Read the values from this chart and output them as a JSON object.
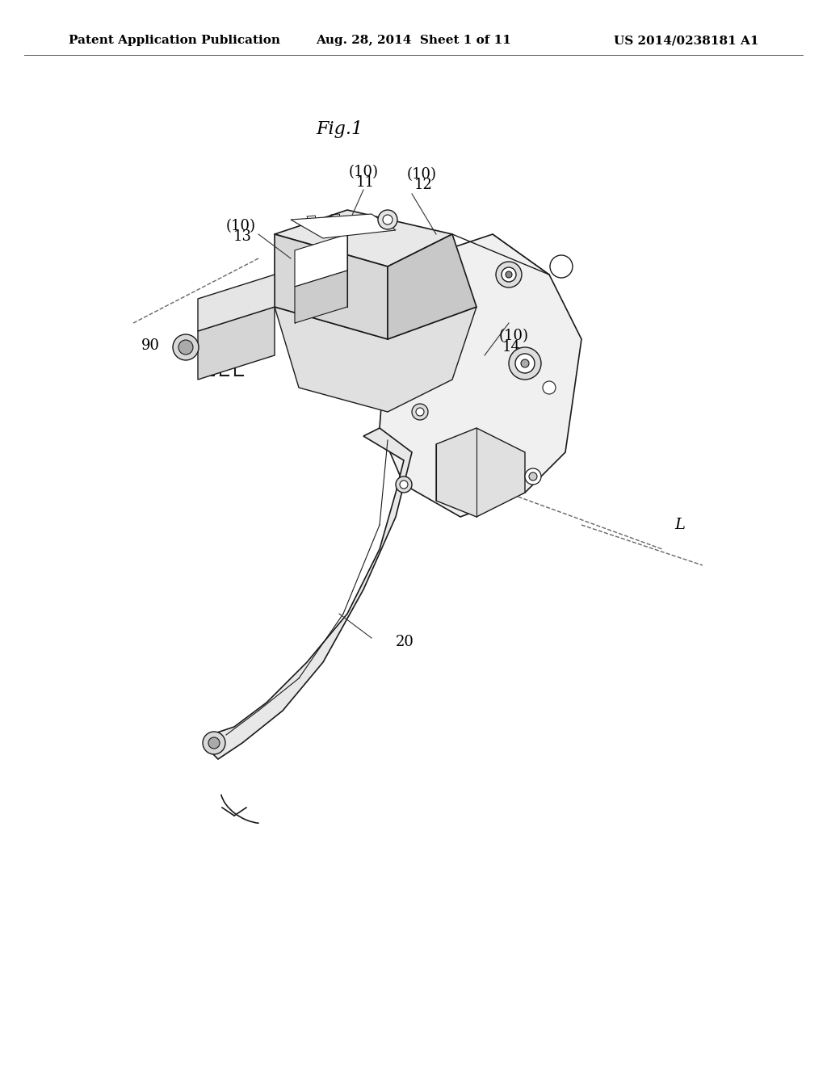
{
  "background_color": "#ffffff",
  "header_left": "Patent Application Publication",
  "header_center": "Aug. 28, 2014  Sheet 1 of 11",
  "header_right": "US 2014/0238181 A1",
  "fig_label": "Fig.1",
  "labels": {
    "10_11": "(10)\n11",
    "10_12": "(10)\n12",
    "10_13": "(10)\n13",
    "10_14": "(10)\n14",
    "90": "90",
    "20": "20",
    "L": "L"
  },
  "line_color": "#1a1a1a",
  "text_color": "#000000",
  "header_fontsize": 11,
  "fig_label_fontsize": 16,
  "label_fontsize": 13
}
